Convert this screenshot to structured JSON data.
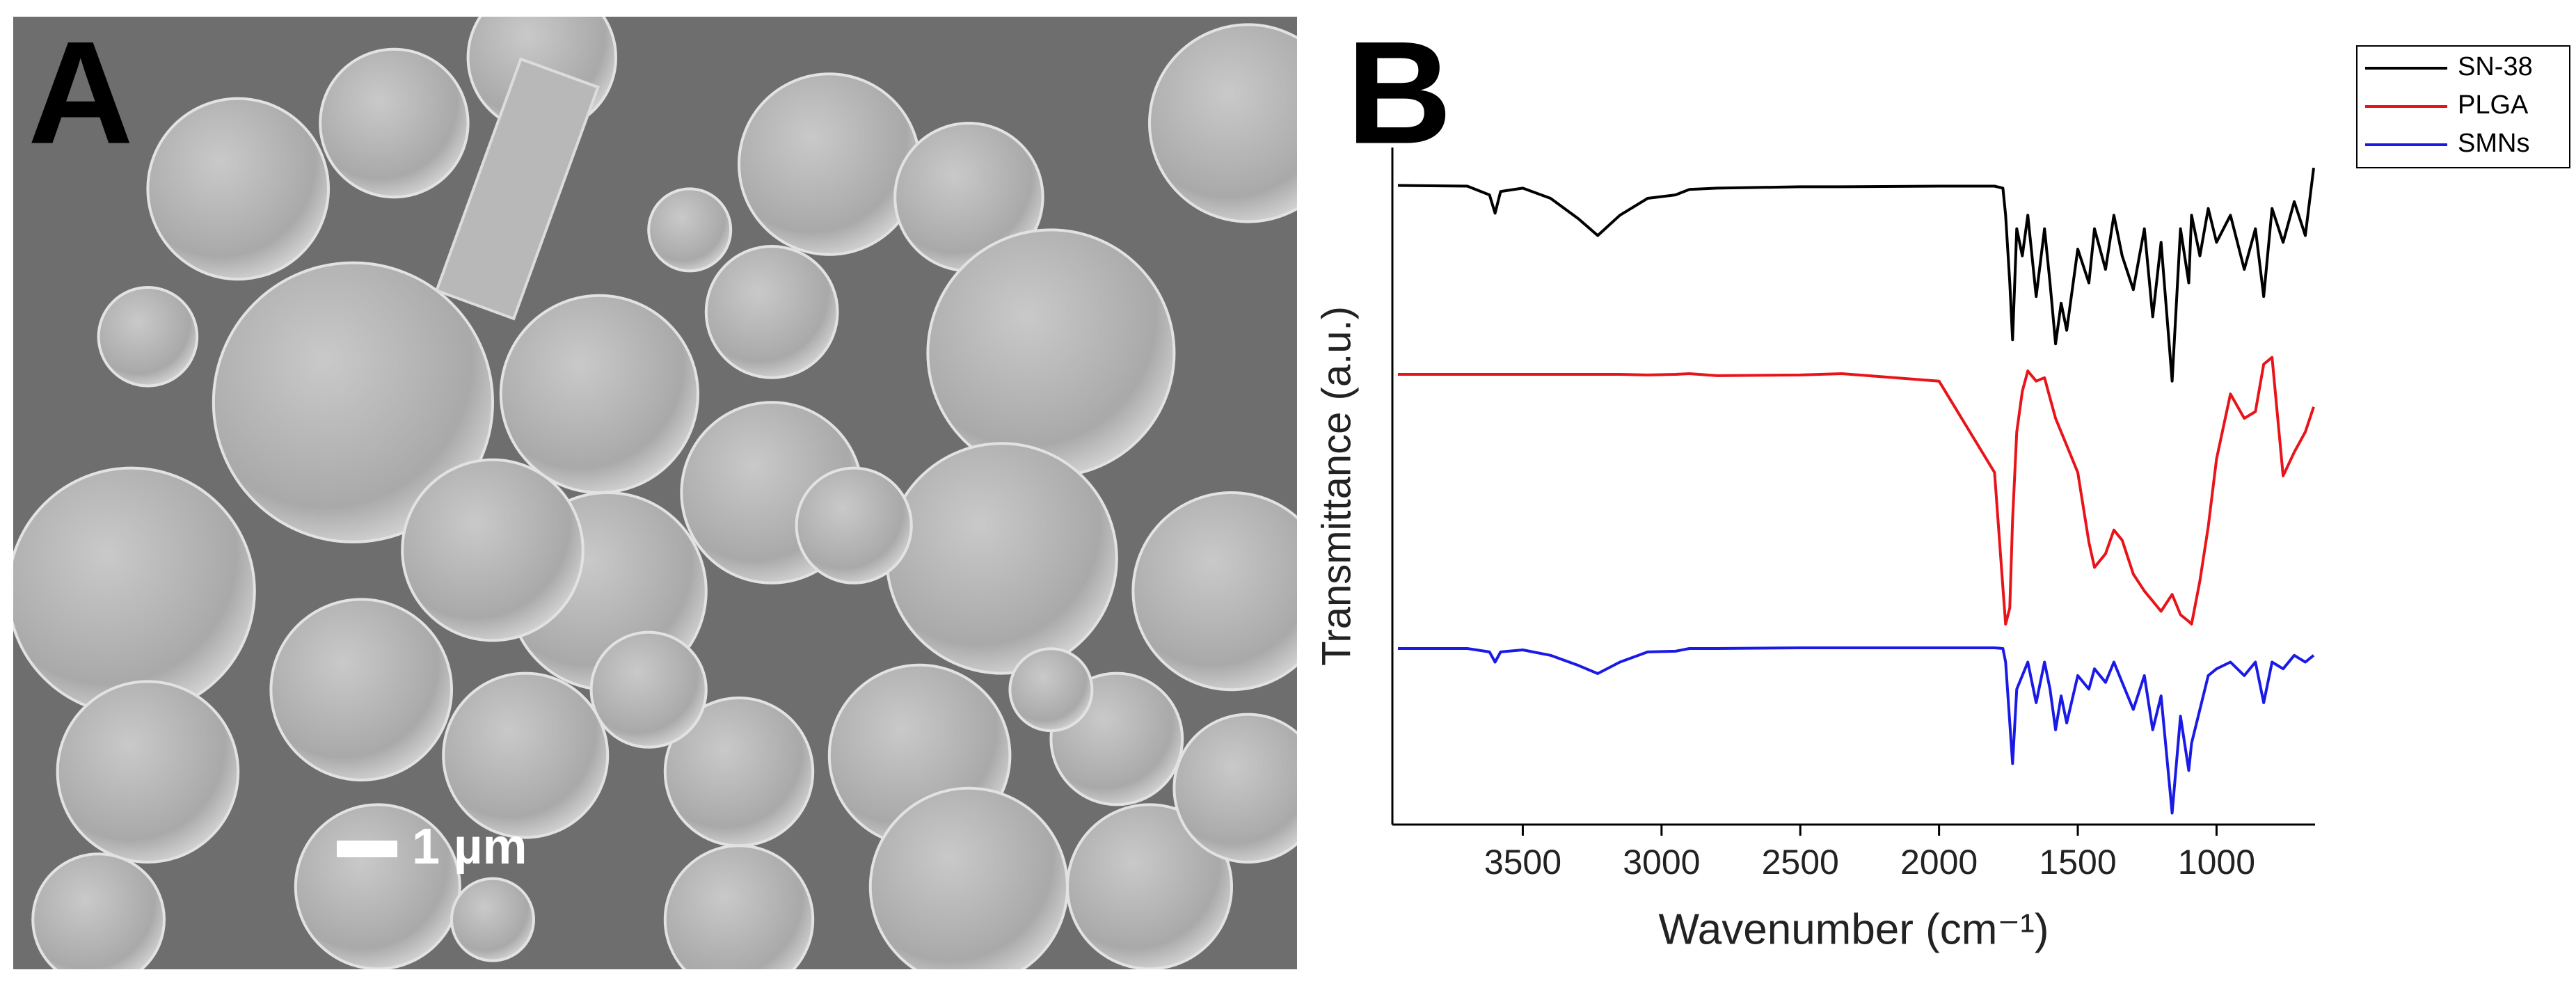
{
  "panel_a": {
    "label": "A",
    "scale_bar": "1 µm"
  },
  "chart_data": {
    "type": "line",
    "panel_label": "B",
    "x_label": "Wavenumber (cm⁻¹)",
    "y_label": "Transmittance (a.u.)",
    "x": [
      3950,
      3700,
      3620,
      3600,
      3580,
      3500,
      3400,
      3300,
      3230,
      3150,
      3050,
      2950,
      2900,
      2800,
      2500,
      2350,
      2000,
      1800,
      1770,
      1760,
      1745,
      1735,
      1720,
      1700,
      1680,
      1650,
      1620,
      1600,
      1580,
      1560,
      1540,
      1500,
      1460,
      1440,
      1400,
      1370,
      1340,
      1300,
      1260,
      1230,
      1200,
      1160,
      1130,
      1100,
      1090,
      1060,
      1030,
      1000,
      950,
      900,
      860,
      830,
      800,
      760,
      720,
      680,
      650
    ],
    "series": [
      {
        "name": "SN-38",
        "color": "#000000",
        "values": [
          94.4,
          94.3,
          93,
          90.3,
          93.5,
          94,
          92.5,
          89.5,
          87,
          90,
          92.5,
          93,
          93.8,
          94,
          94.2,
          94.2,
          94.3,
          94.3,
          94,
          90,
          80,
          71.6,
          88,
          84,
          90,
          78,
          88,
          80,
          71,
          77,
          73,
          85,
          80,
          88,
          82,
          90,
          84,
          79,
          88,
          75,
          86,
          65.5,
          88,
          80,
          90,
          84,
          91,
          86,
          90,
          82,
          88,
          78,
          91,
          86,
          92,
          87,
          97
        ]
      },
      {
        "name": "PLGA",
        "color": "#e8141a",
        "values": [
          66.5,
          66.5,
          66.5,
          66.5,
          66.5,
          66.5,
          66.5,
          66.5,
          66.5,
          66.5,
          66.4,
          66.5,
          66.6,
          66.3,
          66.4,
          66.6,
          65.5,
          52,
          35,
          29.6,
          32,
          45,
          58,
          64,
          67,
          65.5,
          66,
          63,
          60,
          58,
          56,
          52,
          41.7,
          38,
          40,
          43.5,
          42,
          37,
          34.5,
          33,
          31.5,
          34,
          31,
          30,
          29.6,
          36,
          44,
          54,
          63.6,
          60,
          61,
          68,
          69,
          51.5,
          55,
          58,
          61.7
        ]
      },
      {
        "name": "SMNs",
        "color": "#1a1ae6",
        "values": [
          26,
          26,
          25.5,
          24,
          25.5,
          25.8,
          25,
          23.5,
          22.3,
          24,
          25.5,
          25.6,
          26,
          26,
          26.1,
          26.1,
          26.1,
          26.1,
          26,
          24,
          15,
          9,
          20,
          22,
          24,
          18,
          24,
          20,
          14,
          19,
          15,
          22,
          20,
          23,
          21,
          24,
          21,
          17,
          22,
          14,
          19,
          1.7,
          16,
          8,
          12,
          17,
          22,
          23,
          24,
          22,
          24,
          18,
          24,
          23,
          25,
          24,
          25
        ]
      }
    ],
    "xlim": [
      3970,
      645
    ],
    "ylim": [
      0,
      100
    ],
    "xticks": [
      3500,
      3000,
      2500,
      2000,
      1500,
      1000
    ],
    "legend": "top-right"
  }
}
